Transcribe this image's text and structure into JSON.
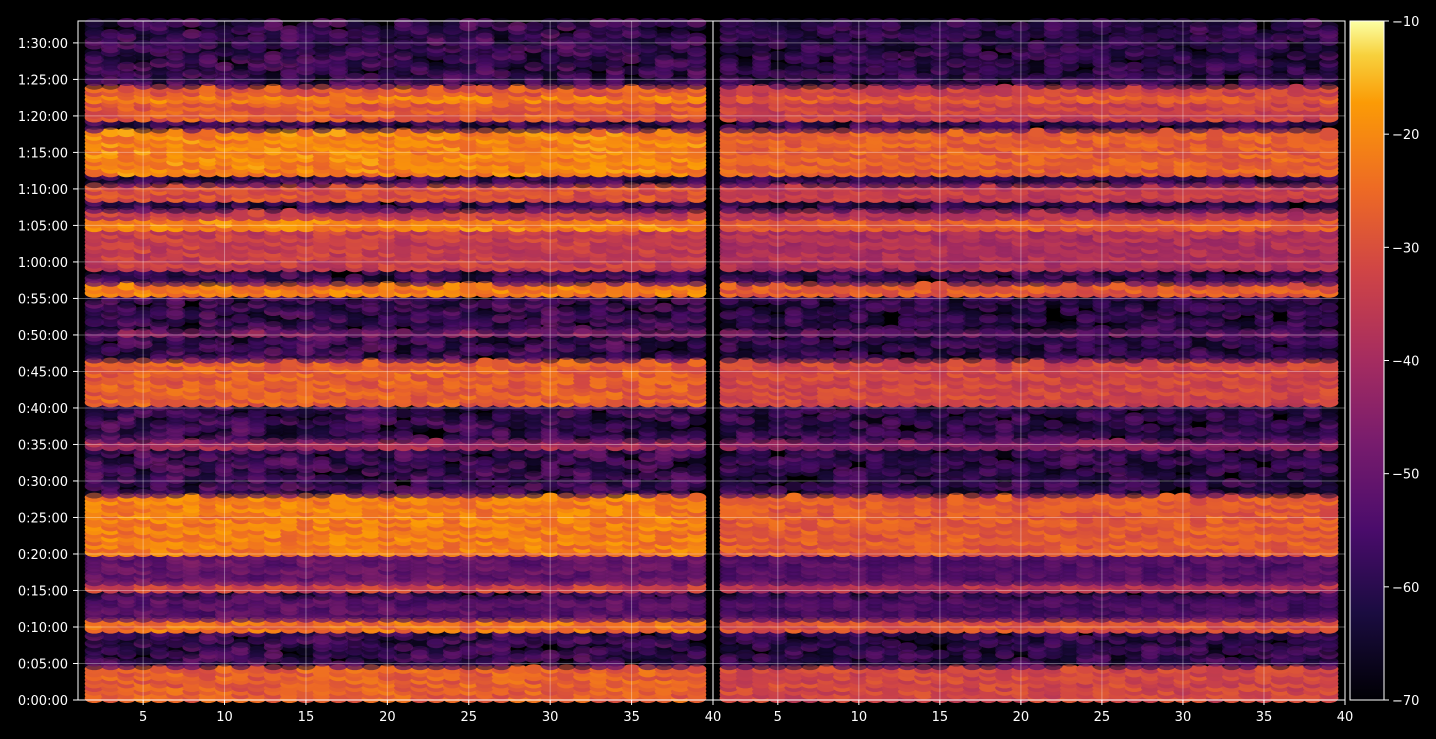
{
  "chart_data": {
    "type": "heatmap",
    "background_color": "#000000",
    "colormap": "inferno",
    "grid": true,
    "panels": [
      {
        "name": "",
        "x_range": [
          1,
          40
        ],
        "x_ticks": [
          5,
          10,
          15,
          20,
          25,
          30,
          35,
          40
        ],
        "x_tick_labels": [
          "5",
          "10",
          "15",
          "20",
          "25",
          "30",
          "35",
          "40"
        ],
        "activity_scale": 1.0
      },
      {
        "name": "",
        "x_range": [
          1,
          40
        ],
        "x_ticks": [
          5,
          10,
          15,
          20,
          25,
          30,
          35,
          40
        ],
        "x_tick_labels": [
          "5",
          "10",
          "15",
          "20",
          "25",
          "30",
          "35",
          "40"
        ],
        "activity_scale": 0.88
      }
    ],
    "y_axis": {
      "range_seconds": [
        0,
        5580
      ],
      "ticks_seconds": [
        0,
        300,
        600,
        900,
        1200,
        1500,
        1800,
        2100,
        2400,
        2700,
        3000,
        3300,
        3600,
        3900,
        4200,
        4500,
        4800,
        5100,
        5400
      ],
      "tick_labels": [
        "0:00:00",
        "0:05:00",
        "0:10:00",
        "0:15:00",
        "0:20:00",
        "0:25:00",
        "0:30:00",
        "0:35:00",
        "0:40:00",
        "0:45:00",
        "0:50:00",
        "0:55:00",
        "1:00:00",
        "1:05:00",
        "1:10:00",
        "1:15:00",
        "1:20:00",
        "1:25:00",
        "1:30:00"
      ]
    },
    "colorbar": {
      "range": [
        -70,
        -10
      ],
      "ticks": [
        -10,
        -20,
        -30,
        -40,
        -50,
        -60,
        -70
      ],
      "tick_labels": [
        "−10",
        "−20",
        "−30",
        "−40",
        "−50",
        "−60",
        "−70"
      ]
    },
    "activity_bands": [
      {
        "start_s": 0,
        "end_s": 280,
        "level_db": -27
      },
      {
        "start_s": 580,
        "end_s": 650,
        "level_db": -24
      },
      {
        "start_s": 650,
        "end_s": 840,
        "level_db": -52
      },
      {
        "start_s": 900,
        "end_s": 960,
        "level_db": -33
      },
      {
        "start_s": 960,
        "end_s": 1200,
        "level_db": -50
      },
      {
        "start_s": 1210,
        "end_s": 1690,
        "level_db": -22
      },
      {
        "start_s": 1700,
        "end_s": 2440,
        "level_db": -56
      },
      {
        "start_s": 2060,
        "end_s": 2130,
        "level_db": -40
      },
      {
        "start_s": 2440,
        "end_s": 2780,
        "level_db": -27
      },
      {
        "start_s": 2990,
        "end_s": 3030,
        "level_db": -44
      },
      {
        "start_s": 3320,
        "end_s": 3430,
        "level_db": -22
      },
      {
        "start_s": 3540,
        "end_s": 4020,
        "level_db": -34
      },
      {
        "start_s": 3880,
        "end_s": 3960,
        "level_db": -21
      },
      {
        "start_s": 4110,
        "end_s": 4240,
        "level_db": -30
      },
      {
        "start_s": 4320,
        "end_s": 4680,
        "level_db": -21
      },
      {
        "start_s": 4760,
        "end_s": 5040,
        "level_db": -28
      },
      {
        "start_s": 4910,
        "end_s": 4990,
        "level_db": -22
      },
      {
        "start_s": 5070,
        "end_s": 5580,
        "level_db": -57
      }
    ]
  }
}
